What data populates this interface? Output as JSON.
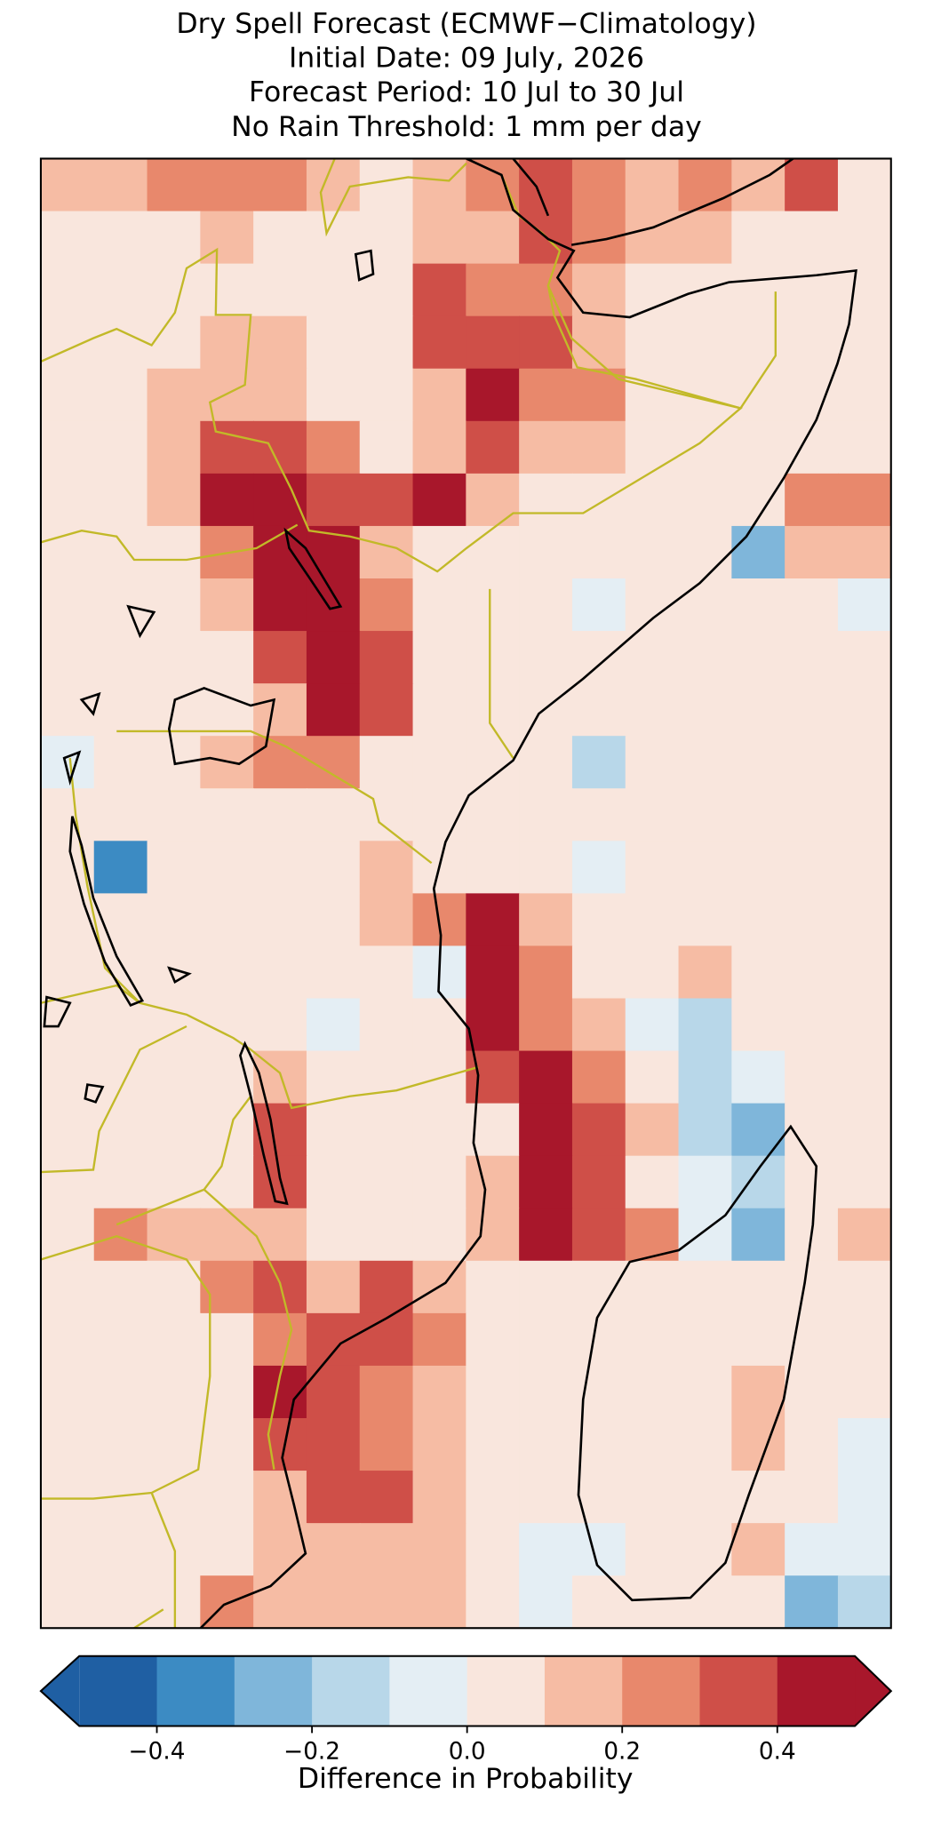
{
  "chart_data": {
    "type": "heatmap",
    "title": [
      "Dry Spell Forecast (ECMWF−Climatology)",
      "Initial Date: 09 July, 2026",
      "Forecast Period: 10 Jul to 30 Jul",
      "No Rain Threshold: 1 mm per day"
    ],
    "values": [
      [
        0.15,
        0.1,
        0.2,
        0.25,
        0.2,
        0.1,
        0.05,
        0.1,
        0.2,
        0.3,
        0.2,
        0.15,
        0.2,
        0.15,
        0.3,
        0.05
      ],
      [
        0.05,
        0.05,
        0.05,
        0.1,
        0.05,
        0.05,
        0.05,
        0.1,
        0.15,
        0.3,
        0.2,
        0.1,
        0.15,
        0.05,
        0.05,
        0.05
      ],
      [
        0.05,
        0.05,
        0.05,
        0.05,
        0.05,
        0.05,
        0.05,
        0.35,
        0.25,
        0.2,
        0.1,
        0.05,
        0.05,
        0.05,
        0.05,
        0.05
      ],
      [
        0.05,
        0.05,
        0.05,
        0.1,
        0.15,
        0.05,
        0.05,
        0.3,
        0.35,
        0.3,
        0.15,
        0.05,
        0.05,
        0.05,
        0.05,
        0.05
      ],
      [
        0.05,
        0.05,
        0.1,
        0.15,
        0.15,
        0.05,
        0.05,
        0.1,
        0.4,
        0.2,
        0.2,
        0.05,
        0.05,
        0.05,
        0.05,
        0.05
      ],
      [
        0.05,
        0.05,
        0.15,
        0.3,
        0.3,
        0.25,
        0.05,
        0.15,
        0.35,
        0.15,
        0.1,
        0.05,
        0.05,
        0.05,
        0.05,
        0.05
      ],
      [
        0.05,
        0.05,
        0.15,
        0.45,
        0.45,
        0.35,
        0.3,
        0.4,
        0.15,
        0.05,
        0.05,
        0.05,
        0.05,
        0.05,
        0.25,
        0.2
      ],
      [
        0.05,
        0.05,
        0.05,
        0.2,
        0.45,
        0.4,
        0.15,
        0.05,
        0.05,
        0.05,
        0.05,
        0.05,
        0.0,
        -0.3,
        0.15,
        0.1
      ],
      [
        0.0,
        0.0,
        0.05,
        0.15,
        0.45,
        0.45,
        0.2,
        0.05,
        0.05,
        0.05,
        -0.1,
        0.05,
        0.0,
        0.05,
        0.05,
        -0.1
      ],
      [
        0.05,
        0.0,
        0.0,
        0.05,
        0.3,
        0.45,
        0.35,
        0.05,
        0.05,
        0.05,
        0.05,
        0.0,
        0.0,
        0.05,
        0.05,
        0.0
      ],
      [
        0.05,
        0.0,
        0.0,
        0.05,
        0.15,
        0.45,
        0.3,
        0.05,
        0.05,
        0.05,
        0.05,
        0.0,
        0.0,
        0.05,
        0.0,
        0.05
      ],
      [
        -0.1,
        0.05,
        0.05,
        0.1,
        0.2,
        0.25,
        0.05,
        0.05,
        0.05,
        0.05,
        -0.2,
        0.0,
        0.0,
        0.05,
        0.05,
        0.0
      ],
      [
        0.05,
        0.05,
        0.05,
        0.05,
        0.05,
        0.05,
        0.05,
        0.05,
        0.0,
        0.05,
        0.0,
        0.0,
        0.05,
        0.0,
        0.05,
        0.05
      ],
      [
        0.0,
        -0.4,
        0.05,
        0.05,
        0.05,
        0.05,
        0.1,
        0.05,
        0.05,
        0.0,
        -0.1,
        0.0,
        0.05,
        0.05,
        0.05,
        0.05
      ],
      [
        0.0,
        0.05,
        0.05,
        0.05,
        0.05,
        0.05,
        0.15,
        0.2,
        0.4,
        0.1,
        0.0,
        0.05,
        0.05,
        0.0,
        0.05,
        0.05
      ],
      [
        0.0,
        0.05,
        0.05,
        0.05,
        0.05,
        0.0,
        0.05,
        -0.1,
        0.45,
        0.2,
        0.05,
        0.0,
        0.15,
        0.0,
        0.05,
        0.0
      ],
      [
        0.05,
        0.05,
        0.05,
        0.05,
        0.05,
        -0.1,
        0.05,
        0.05,
        0.45,
        0.25,
        0.1,
        -0.1,
        -0.15,
        0.0,
        0.05,
        0.05
      ],
      [
        0.0,
        0.05,
        0.05,
        0.05,
        0.15,
        0.0,
        0.05,
        0.05,
        0.35,
        0.4,
        0.2,
        0.0,
        -0.15,
        -0.1,
        0.0,
        0.05
      ],
      [
        0.05,
        0.05,
        0.05,
        0.05,
        0.3,
        0.05,
        0.05,
        0.05,
        0.05,
        0.45,
        0.3,
        0.1,
        -0.2,
        -0.3,
        0.0,
        0.05
      ],
      [
        0.05,
        0.05,
        0.05,
        0.05,
        0.35,
        0.05,
        0.05,
        0.05,
        0.1,
        0.45,
        0.35,
        0.05,
        -0.1,
        -0.2,
        0.05,
        0.05
      ],
      [
        0.05,
        0.2,
        0.15,
        0.1,
        0.1,
        0.05,
        0.05,
        0.05,
        0.1,
        0.45,
        0.35,
        0.2,
        -0.1,
        -0.3,
        0.0,
        0.15
      ],
      [
        0.05,
        0.05,
        0.05,
        0.25,
        0.3,
        0.15,
        0.3,
        0.1,
        0.05,
        0.05,
        0.05,
        0.05,
        0.05,
        0.0,
        0.0,
        0.05
      ],
      [
        0.05,
        0.05,
        0.05,
        0.05,
        0.25,
        0.3,
        0.3,
        0.25,
        0.05,
        0.05,
        0.05,
        0.05,
        0.05,
        0.05,
        0.05,
        0.05
      ],
      [
        0.05,
        0.05,
        0.05,
        0.05,
        0.4,
        0.35,
        0.2,
        0.1,
        0.05,
        0.0,
        0.05,
        0.05,
        0.05,
        0.1,
        0.05,
        0.0
      ],
      [
        0.05,
        0.05,
        0.05,
        0.05,
        0.35,
        0.3,
        0.2,
        0.15,
        0.05,
        0.0,
        0.05,
        0.05,
        0.05,
        0.1,
        0.05,
        -0.1
      ],
      [
        0.0,
        0.05,
        0.05,
        0.05,
        0.15,
        0.3,
        0.3,
        0.15,
        0.05,
        0.0,
        0.05,
        0.05,
        0.05,
        0.05,
        0.0,
        -0.1
      ],
      [
        0.05,
        0.05,
        0.05,
        0.05,
        0.1,
        0.15,
        0.15,
        0.1,
        0.05,
        -0.1,
        -0.1,
        0.05,
        0.05,
        0.1,
        -0.1,
        -0.1
      ],
      [
        0.05,
        0.0,
        0.05,
        0.2,
        0.1,
        0.15,
        0.1,
        0.1,
        0.05,
        -0.1,
        0.0,
        0.05,
        0.05,
        0.05,
        -0.3,
        -0.2
      ]
    ],
    "colorbar": {
      "label": "Difference in Probability",
      "extend": "both",
      "boundaries": [
        -0.5,
        -0.4,
        -0.3,
        -0.2,
        -0.1,
        0.0,
        0.1,
        0.2,
        0.3,
        0.4,
        0.5
      ],
      "colors": [
        "#1f5fa3",
        "#3c8bc3",
        "#7fb6da",
        "#b8d7e9",
        "#e4eef4",
        "#f9e6dd",
        "#f6bca4",
        "#e8886c",
        "#cf4f48",
        "#a8172b"
      ],
      "ticks": [
        {
          "value": -0.4,
          "label": "−0.4"
        },
        {
          "value": -0.2,
          "label": "−0.2"
        },
        {
          "value": 0.0,
          "label": "0.0"
        },
        0.2,
        0.4
      ]
    }
  }
}
